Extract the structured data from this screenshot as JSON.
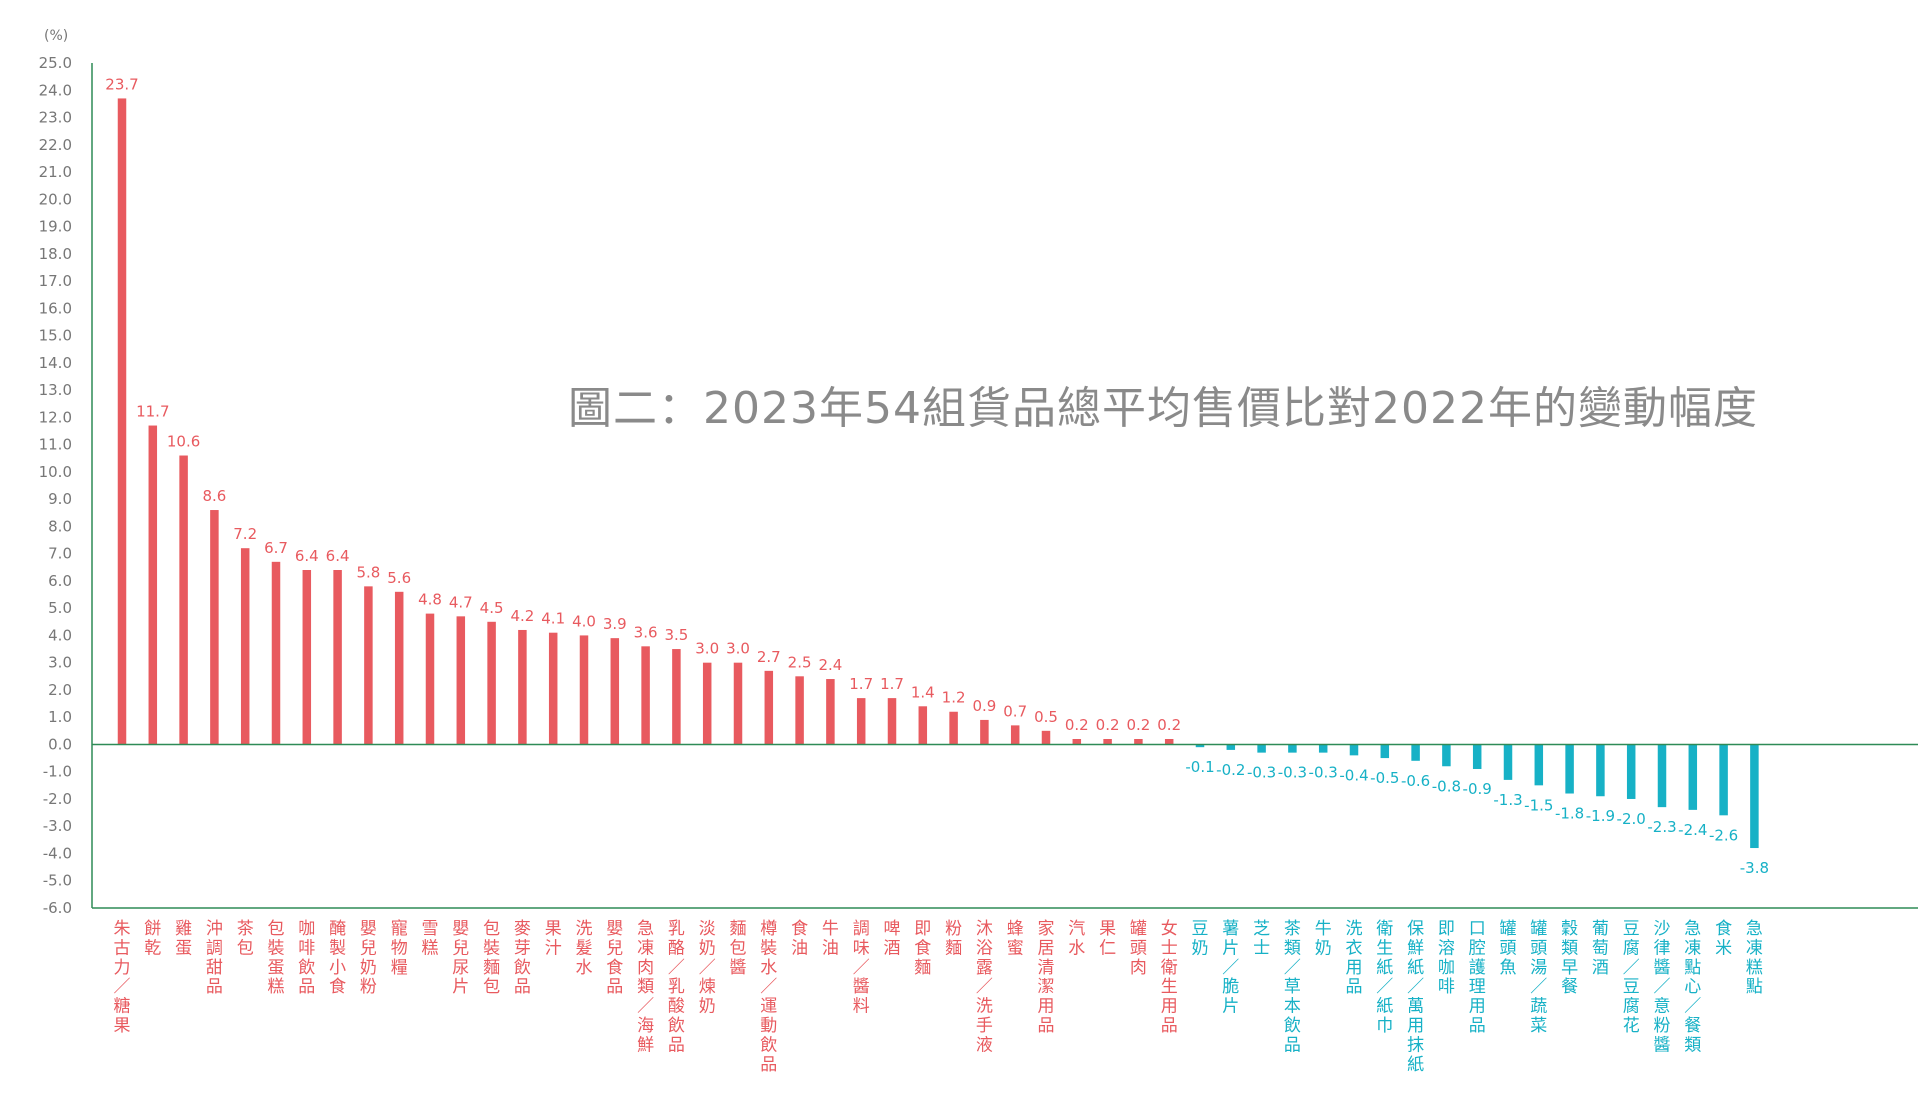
{
  "title": "圖二：2023年54組貨品總平均售價比對2022年的變動幅度",
  "chart_data": {
    "type": "bar",
    "unit_label": "(%)",
    "ylim": [
      -6.0,
      25.0
    ],
    "yticks": [
      25.0,
      24.0,
      23.0,
      22.0,
      21.0,
      20.0,
      19.0,
      18.0,
      17.0,
      16.0,
      15.0,
      14.0,
      13.0,
      12.0,
      11.0,
      10.0,
      9.0,
      8.0,
      7.0,
      6.0,
      5.0,
      4.0,
      3.0,
      2.0,
      1.0,
      0.0,
      -1.0,
      -2.0,
      -3.0,
      -4.0,
      -5.0,
      -6.0
    ],
    "grid": false,
    "colors": {
      "positive": "#e85a5f",
      "negative": "#17b1c6",
      "axis": "#2e8b57",
      "tick_text": "#777777"
    },
    "categories": [
      "朱古力／糖果",
      "餅乾",
      "雞蛋",
      "沖調甜品",
      "茶包",
      "包裝蛋糕",
      "咖啡飲品",
      "醃製小食",
      "嬰兒奶粉",
      "寵物糧",
      "雪糕",
      "嬰兒尿片",
      "包裝麵包",
      "麥芽飲品",
      "果汁",
      "洗髮水",
      "嬰兒食品",
      "急凍肉類／海鮮",
      "乳酪／乳酸飲品",
      "淡奶／煉奶",
      "麵包醬",
      "樽裝水／運動飲品",
      "食油",
      "牛油",
      "調味／醬料",
      "啤酒",
      "即食麵",
      "粉麵",
      "沐浴露／洗手液",
      "蜂蜜",
      "家居清潔用品",
      "汽水",
      "果仁",
      "罐頭肉",
      "女士衛生用品",
      "豆奶",
      "薯片／脆片",
      "芝士",
      "茶類／草本飲品",
      "牛奶",
      "洗衣用品",
      "衛生紙／紙巾",
      "保鮮紙／萬用抹紙",
      "即溶咖啡",
      "口腔護理用品",
      "罐頭魚",
      "罐頭湯／蔬菜",
      "穀類早餐",
      "葡萄酒",
      "豆腐／豆腐花",
      "沙律醬／意粉醬",
      "急凍點心／餐類",
      "食米",
      "急凍糕點"
    ],
    "values": [
      23.7,
      11.7,
      10.6,
      8.6,
      7.2,
      6.7,
      6.4,
      6.4,
      5.8,
      5.6,
      4.8,
      4.7,
      4.5,
      4.2,
      4.1,
      4.0,
      3.9,
      3.6,
      3.5,
      3.0,
      3.0,
      2.7,
      2.5,
      2.4,
      1.7,
      1.7,
      1.4,
      1.2,
      0.9,
      0.7,
      0.5,
      0.2,
      0.2,
      0.2,
      0.2,
      -0.1,
      -0.2,
      -0.3,
      -0.3,
      -0.3,
      -0.4,
      -0.5,
      -0.6,
      -0.8,
      -0.9,
      -1.3,
      -1.5,
      -1.8,
      -1.9,
      -2.0,
      -2.3,
      -2.4,
      -2.6,
      -3.8
    ],
    "value_labels": [
      "23.7",
      "11.7",
      "10.6",
      "8.6",
      "7.2",
      "6.7",
      "6.4",
      "6.4",
      "5.8",
      "5.6",
      "4.8",
      "4.7",
      "4.5",
      "4.2",
      "4.1",
      "4.0",
      "3.9",
      "3.6",
      "3.5",
      "3.0",
      "3.0",
      "2.7",
      "2.5",
      "2.4",
      "1.7",
      "1.7",
      "1.4",
      "1.2",
      "0.9",
      "0.7",
      "0.5",
      "0.2",
      "0.2",
      "0.2",
      "0.2",
      "-0.1",
      "-0.2",
      "-0.3",
      "-0.3",
      "-0.3",
      "-0.4",
      "-0.5",
      "-0.6",
      "-0.8",
      "-0.9",
      "-1.3",
      "-1.5",
      "-1.8",
      "-1.9",
      "-2.0",
      "-2.3",
      "-2.4",
      "-2.6",
      "-3.8"
    ]
  }
}
